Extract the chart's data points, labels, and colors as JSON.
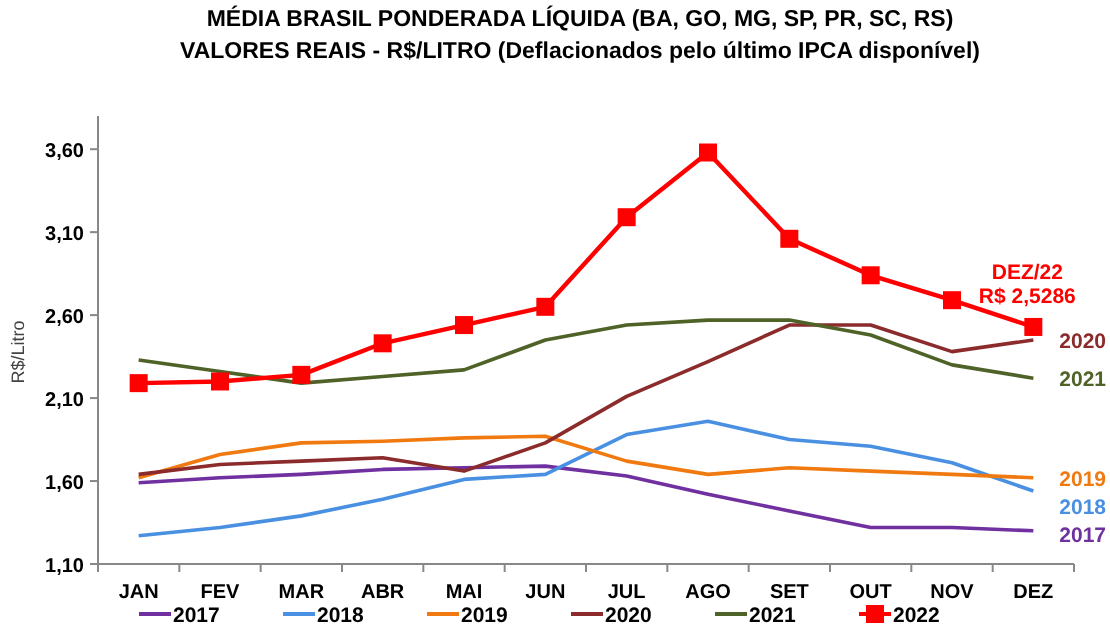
{
  "chart_data": {
    "type": "line",
    "title": "MÉDIA BRASIL PONDERADA LÍQUIDA (BA, GO, MG, SP, PR, SC, RS)",
    "subtitle": "VALORES REAIS - R$/LITRO (Deflacionados pelo último IPCA disponível)",
    "ylabel": "R$/Litro",
    "categories": [
      "JAN",
      "FEV",
      "MAR",
      "ABR",
      "MAI",
      "JUN",
      "JUL",
      "AGO",
      "SET",
      "OUT",
      "NOV",
      "DEZ"
    ],
    "series": [
      {
        "name": "2017",
        "color": "#7030a0",
        "values": [
          1.59,
          1.62,
          1.64,
          1.67,
          1.68,
          1.69,
          1.63,
          1.52,
          1.42,
          1.32,
          1.32,
          1.3
        ]
      },
      {
        "name": "2018",
        "color": "#4a90e2",
        "values": [
          1.27,
          1.32,
          1.39,
          1.49,
          1.61,
          1.64,
          1.88,
          1.96,
          1.85,
          1.81,
          1.71,
          1.54
        ]
      },
      {
        "name": "2019",
        "color": "#f07a10",
        "values": [
          1.62,
          1.76,
          1.83,
          1.84,
          1.86,
          1.87,
          1.72,
          1.64,
          1.68,
          1.66,
          1.64,
          1.62
        ]
      },
      {
        "name": "2020",
        "color": "#8b2b2b",
        "values": [
          1.64,
          1.7,
          1.72,
          1.74,
          1.66,
          1.83,
          2.11,
          2.32,
          2.54,
          2.54,
          2.38,
          2.45
        ]
      },
      {
        "name": "2021",
        "color": "#4f6228",
        "values": [
          2.33,
          2.26,
          2.19,
          2.23,
          2.27,
          2.45,
          2.54,
          2.57,
          2.57,
          2.48,
          2.3,
          2.22
        ]
      },
      {
        "name": "2022",
        "color": "#ff0000",
        "marker": "square",
        "values": [
          2.19,
          2.2,
          2.24,
          2.43,
          2.54,
          2.65,
          3.19,
          3.58,
          3.06,
          2.84,
          2.69,
          2.5286
        ]
      }
    ],
    "ylim": [
      1.1,
      3.8
    ],
    "yticks": [
      {
        "value": 1.1,
        "label": "1,10"
      },
      {
        "value": 1.6,
        "label": "1,60"
      },
      {
        "value": 2.1,
        "label": "2,10"
      },
      {
        "value": 2.6,
        "label": "2,60"
      },
      {
        "value": 3.1,
        "label": "3,10"
      },
      {
        "value": 3.6,
        "label": "3,60"
      }
    ],
    "annotations": [
      {
        "text": "DEZ/22\nR$ 2,5286",
        "x": "DEZ",
        "y": 2.5286
      }
    ],
    "grid": false,
    "legend": "bottom"
  }
}
